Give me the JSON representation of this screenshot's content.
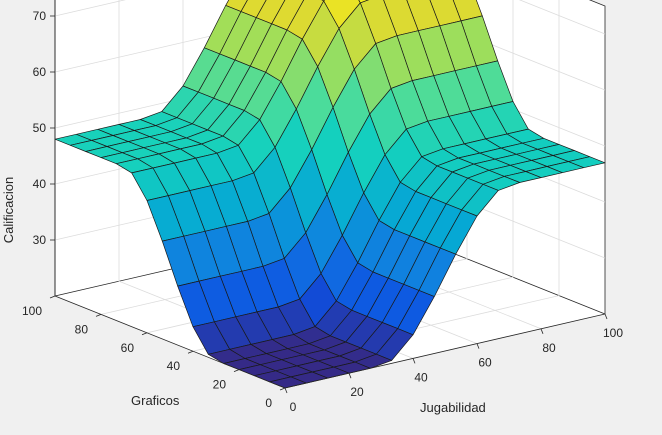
{
  "chart_data": {
    "type": "surface",
    "xlabel": "Jugabilidad",
    "ylabel": "Graficos",
    "zlabel": "Calificacion",
    "xlim": [
      0,
      100
    ],
    "ylim": [
      0,
      100
    ],
    "zlim": [
      20,
      75
    ],
    "x_ticks": [
      "0",
      "20",
      "40",
      "60",
      "80",
      "100"
    ],
    "y_ticks": [
      "0",
      "20",
      "40",
      "60",
      "80",
      "100"
    ],
    "z_ticks": [
      "30",
      "40",
      "50",
      "60",
      "70"
    ],
    "grid": true,
    "colormap": "parula",
    "x": [
      0,
      6.67,
      13.33,
      20,
      26.67,
      33.33,
      40,
      46.67,
      53.33,
      60,
      66.67,
      73.33,
      80,
      86.67,
      93.33,
      100
    ],
    "y": [
      0,
      6.67,
      13.33,
      20,
      26.67,
      33.33,
      40,
      46.67,
      53.33,
      60,
      66.67,
      73.33,
      80,
      86.67,
      93.33,
      100
    ],
    "z_model": "Calificacion is approximately 20 + 27*L(Jugabilidad) + 28*L(Graficos), where L is a smooth ramp from 0 (below ~30) to 1 (above ~70); the resulting surface spans about 20 at (0,0), about 48 on the plateaus and about 75 near (100,100)"
  }
}
